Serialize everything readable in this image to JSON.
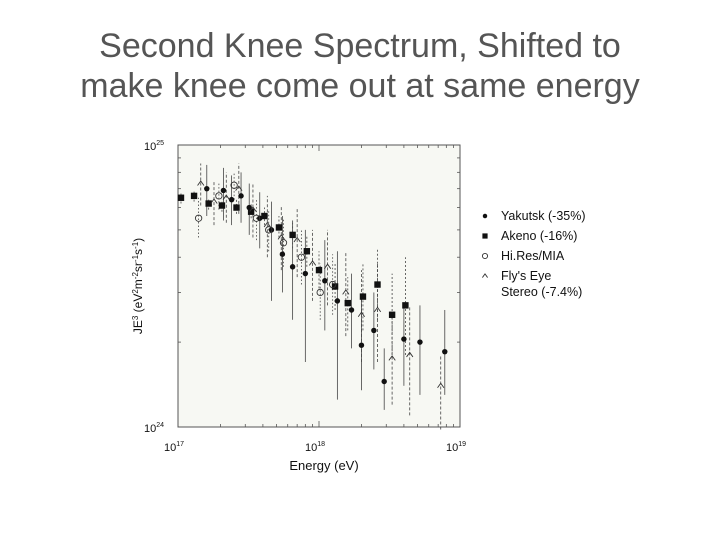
{
  "slide": {
    "title_line1": "Second Knee Spectrum, Shifted to",
    "title_line2": "make knee come out at same energy"
  },
  "chart_data": {
    "type": "scatter",
    "title": "",
    "xlabel": "Energy (eV)",
    "ylabel": "JE3 (eV2m-2sr-1s-1)",
    "xscale": "log",
    "yscale": "log",
    "xlim": [
      1e+17,
      1e+19
    ],
    "ylim": [
      1e+24,
      1e+25
    ],
    "x_ticks": [
      {
        "base": "10",
        "exp": "17"
      },
      {
        "base": "10",
        "exp": "18"
      },
      {
        "base": "10",
        "exp": "19"
      }
    ],
    "y_ticks": [
      {
        "base": "10",
        "exp": "24"
      },
      {
        "base": "10",
        "exp": "25"
      }
    ],
    "legend_position": "right",
    "series": [
      {
        "name": "Yakutsk (-35%)",
        "marker": "filled-circle",
        "points": [
          {
            "x": 1.6e+17,
            "y": 7e+24,
            "lo": 5.6e+24,
            "hi": 8.5e+24
          },
          {
            "x": 2.1e+17,
            "y": 6.9e+24,
            "lo": 5.4e+24,
            "hi": 8.3e+24
          },
          {
            "x": 2.4e+17,
            "y": 6.4e+24,
            "lo": 5.2e+24,
            "hi": 7.8e+24
          },
          {
            "x": 2.8e+17,
            "y": 6.6e+24,
            "lo": 5.3e+24,
            "hi": 8e+24
          },
          {
            "x": 3.2e+17,
            "y": 6e+24,
            "lo": 4.8e+24,
            "hi": 7.3e+24
          },
          {
            "x": 3.8e+17,
            "y": 5.5e+24,
            "lo": 4.3e+24,
            "hi": 6.8e+24
          },
          {
            "x": 4.6e+17,
            "y": 5e+24,
            "lo": 2.8e+24,
            "hi": 6.3e+24
          },
          {
            "x": 5.5e+17,
            "y": 4.1e+24,
            "lo": 3e+24,
            "hi": 5.6e+24
          },
          {
            "x": 6.5e+17,
            "y": 3.7e+24,
            "lo": 2.4e+24,
            "hi": 5.4e+24
          },
          {
            "x": 8e+17,
            "y": 3.5e+24,
            "lo": 1.7e+24,
            "hi": 5e+24
          },
          {
            "x": 1.1e+18,
            "y": 3.3e+24,
            "lo": 2.2e+24,
            "hi": 4.6e+24
          },
          {
            "x": 1.35e+18,
            "y": 2.8e+24,
            "lo": 1.25e+24,
            "hi": 4.2e+24
          },
          {
            "x": 1.7e+18,
            "y": 2.6e+24,
            "lo": 1.9e+24,
            "hi": 3.5e+24
          },
          {
            "x": 2e+18,
            "y": 1.95e+24,
            "lo": 1.35e+24,
            "hi": 2.9e+24
          },
          {
            "x": 2.45e+18,
            "y": 2.2e+24,
            "lo": 1.6e+24,
            "hi": 3e+24
          },
          {
            "x": 2.9e+18,
            "y": 1.45e+24,
            "lo": 1.15e+24,
            "hi": 1.9e+24
          },
          {
            "x": 4e+18,
            "y": 2.05e+24,
            "lo": 1.4e+24,
            "hi": 2.7e+24
          },
          {
            "x": 5.2e+18,
            "y": 2e+24,
            "lo": 1.3e+24,
            "hi": 2.7e+24
          },
          {
            "x": 7.8e+18,
            "y": 1.85e+24,
            "lo": 1.3e+24,
            "hi": 2.6e+24
          }
        ]
      },
      {
        "name": "Akeno (-16%)",
        "marker": "filled-square",
        "points": [
          {
            "x": 1.05e+17,
            "y": 6.5e+24,
            "lo": 6.2e+24,
            "hi": 6.8e+24
          },
          {
            "x": 1.3e+17,
            "y": 6.6e+24,
            "lo": 6.3e+24,
            "hi": 6.9e+24
          },
          {
            "x": 1.65e+17,
            "y": 6.2e+24,
            "lo": 5.9e+24,
            "hi": 6.5e+24
          },
          {
            "x": 2.05e+17,
            "y": 6.1e+24,
            "lo": 5.8e+24,
            "hi": 6.4e+24
          },
          {
            "x": 2.6e+17,
            "y": 6e+24,
            "lo": 5.7e+24,
            "hi": 6.4e+24
          },
          {
            "x": 3.3e+17,
            "y": 5.8e+24,
            "lo": 5.5e+24,
            "hi": 6.2e+24
          },
          {
            "x": 4.1e+17,
            "y": 5.6e+24,
            "lo": 5.2e+24,
            "hi": 6e+24
          },
          {
            "x": 5.2e+17,
            "y": 5.1e+24,
            "lo": 4.7e+24,
            "hi": 5.6e+24
          },
          {
            "x": 6.5e+17,
            "y": 4.8e+24,
            "lo": 4.3e+24,
            "hi": 5.3e+24
          },
          {
            "x": 8.2e+17,
            "y": 4.2e+24,
            "lo": 3.7e+24,
            "hi": 4.8e+24
          },
          {
            "x": 1e+18,
            "y": 3.6e+24,
            "lo": 3.1e+24,
            "hi": 4.2e+24
          },
          {
            "x": 1.3e+18,
            "y": 3.15e+24,
            "lo": 2.6e+24,
            "hi": 3.8e+24
          },
          {
            "x": 1.6e+18,
            "y": 2.75e+24,
            "lo": 2.2e+24,
            "hi": 3.4e+24
          },
          {
            "x": 2.05e+18,
            "y": 2.9e+24,
            "lo": 2.2e+24,
            "hi": 3.8e+24
          },
          {
            "x": 2.6e+18,
            "y": 3.2e+24,
            "lo": 2.4e+24,
            "hi": 4.3e+24
          },
          {
            "x": 3.3e+18,
            "y": 2.5e+24,
            "lo": 1.8e+24,
            "hi": 3.5e+24
          },
          {
            "x": 4.1e+18,
            "y": 2.7e+24,
            "lo": 1.8e+24,
            "hi": 4e+24
          }
        ]
      },
      {
        "name": "Hi.Res/MIA",
        "marker": "open-circle",
        "points": [
          {
            "x": 1.4e+17,
            "y": 5.5e+24,
            "lo": 4.7e+24,
            "hi": 6.5e+24
          },
          {
            "x": 1.95e+17,
            "y": 6.6e+24,
            "lo": 5.9e+24,
            "hi": 7.4e+24
          },
          {
            "x": 2.5e+17,
            "y": 7.2e+24,
            "lo": 6.4e+24,
            "hi": 8e+24
          },
          {
            "x": 3.6e+17,
            "y": 5.5e+24,
            "lo": 4.6e+24,
            "hi": 6.4e+24
          },
          {
            "x": 4.4e+17,
            "y": 5e+24,
            "lo": 4.2e+24,
            "hi": 5.9e+24
          },
          {
            "x": 5.6e+17,
            "y": 4.5e+24,
            "lo": 3.7e+24,
            "hi": 5.5e+24
          },
          {
            "x": 7.5e+17,
            "y": 4e+24,
            "lo": 3.2e+24,
            "hi": 5e+24
          },
          {
            "x": 1.02e+18,
            "y": 3e+24,
            "lo": 2.4e+24,
            "hi": 3.8e+24
          },
          {
            "x": 1.25e+18,
            "y": 3.2e+24,
            "lo": 2.5e+24,
            "hi": 4.1e+24
          }
        ]
      },
      {
        "name": "Fly's Eye Stereo (-7.4%)",
        "marker": "open-triangle",
        "points": [
          {
            "x": 1.45e+17,
            "y": 7.3e+24,
            "lo": 6.1e+24,
            "hi": 8.6e+24
          },
          {
            "x": 1.8e+17,
            "y": 6.3e+24,
            "lo": 5.2e+24,
            "hi": 7.5e+24
          },
          {
            "x": 2.2e+17,
            "y": 6.5e+24,
            "lo": 5.3e+24,
            "hi": 8e+24
          },
          {
            "x": 2.7e+17,
            "y": 7e+24,
            "lo": 5.7e+24,
            "hi": 8.6e+24
          },
          {
            "x": 3.4e+17,
            "y": 5.9e+24,
            "lo": 4.7e+24,
            "hi": 7.3e+24
          },
          {
            "x": 4.3e+17,
            "y": 5.2e+24,
            "lo": 4e+24,
            "hi": 6.6e+24
          },
          {
            "x": 5.4e+17,
            "y": 4.7e+24,
            "lo": 3.6e+24,
            "hi": 6.1e+24
          },
          {
            "x": 7e+17,
            "y": 4.6e+24,
            "lo": 3.4e+24,
            "hi": 6e+24
          },
          {
            "x": 9e+17,
            "y": 3.8e+24,
            "lo": 2.8e+24,
            "hi": 5e+24
          },
          {
            "x": 1.15e+18,
            "y": 3.7e+24,
            "lo": 2.7e+24,
            "hi": 5e+24
          },
          {
            "x": 1.55e+18,
            "y": 3e+24,
            "lo": 2.1e+24,
            "hi": 4.2e+24
          },
          {
            "x": 2e+18,
            "y": 2.5e+24,
            "lo": 1.7e+24,
            "hi": 3.6e+24
          },
          {
            "x": 2.6e+18,
            "y": 2.6e+24,
            "lo": 1.7e+24,
            "hi": 3.8e+24
          },
          {
            "x": 3.3e+18,
            "y": 1.75e+24,
            "lo": 1.2e+24,
            "hi": 2.5e+24
          },
          {
            "x": 4.4e+18,
            "y": 1.8e+24,
            "lo": 1.1e+24,
            "hi": 2.7e+24
          },
          {
            "x": 7.3e+18,
            "y": 1.4e+24,
            "lo": 9.8e+23,
            "hi": 1.8e+24
          }
        ]
      }
    ]
  }
}
